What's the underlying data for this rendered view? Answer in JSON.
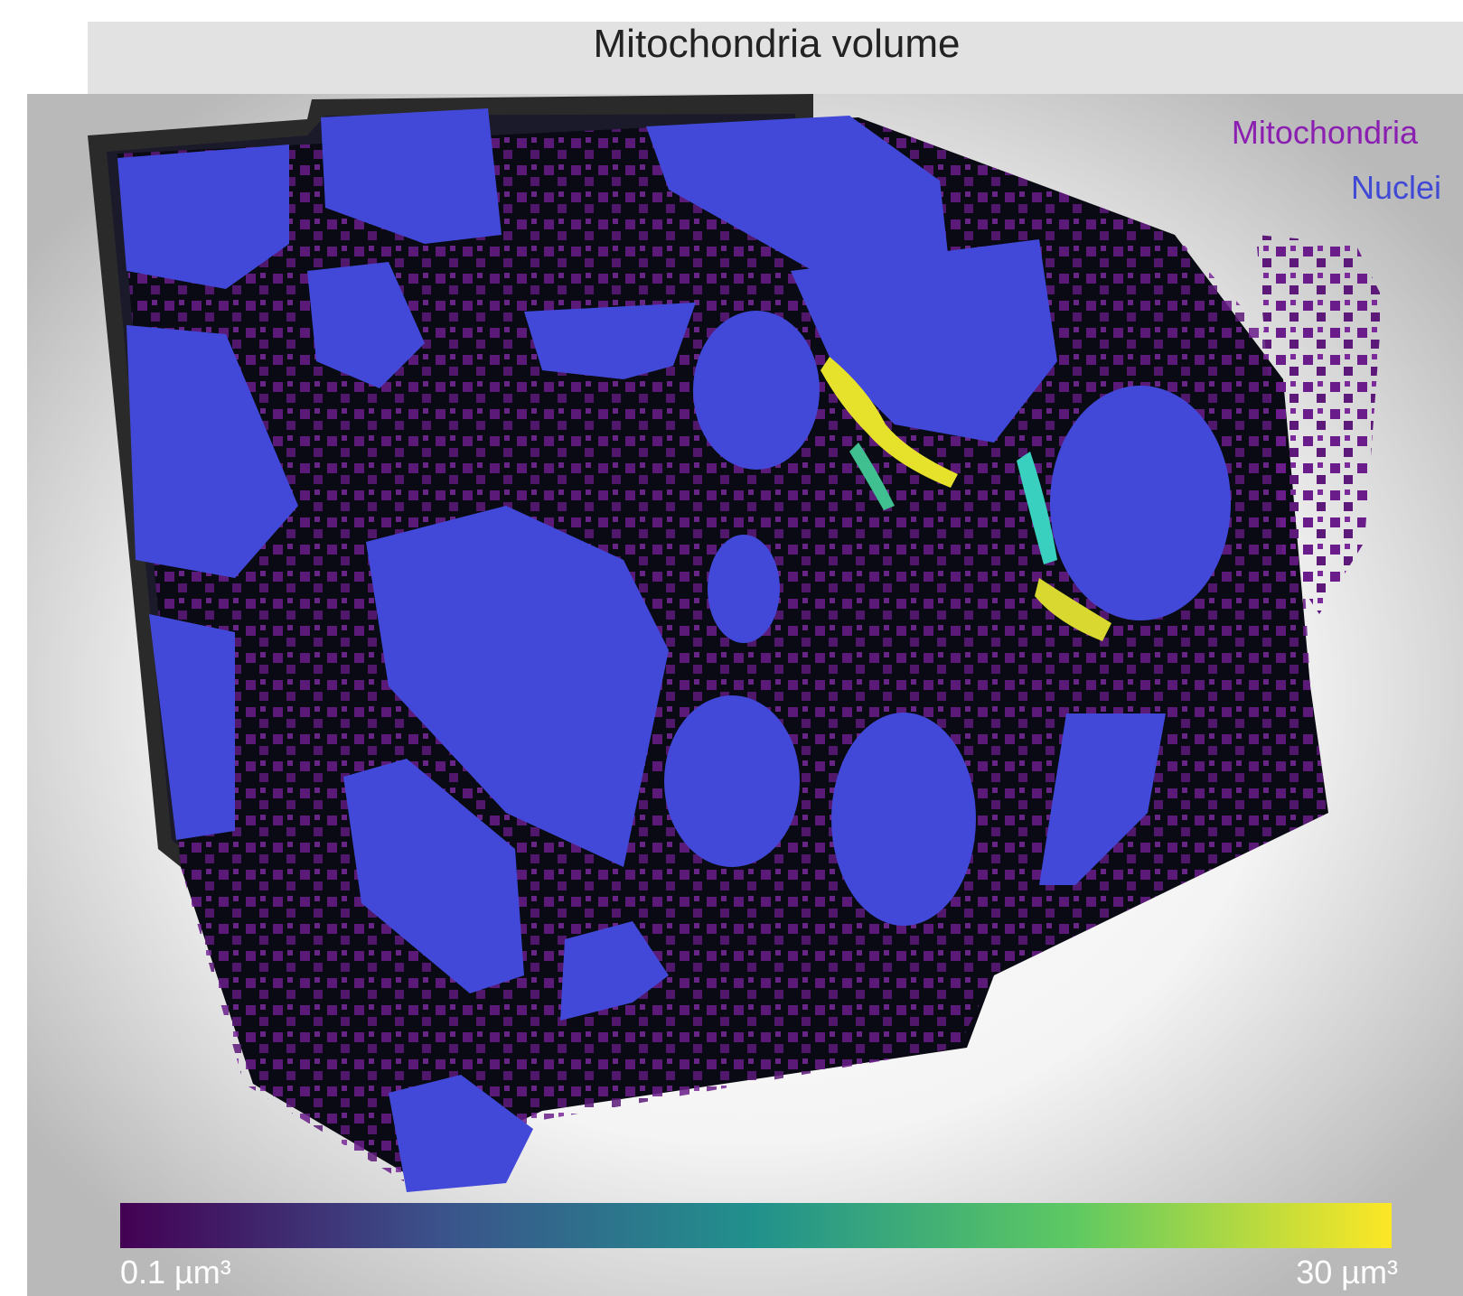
{
  "figure": {
    "title": "Mitochondria volume",
    "legend": [
      {
        "label": "Mitochondria",
        "color": "#8a1fb0"
      },
      {
        "label": "Nuclei",
        "color": "#3f49d6"
      }
    ],
    "colorbar": {
      "min_label": "0.1 µm³",
      "max_label": "30 µm³",
      "colormap": "viridis",
      "stops": [
        "#440154",
        "#3b528b",
        "#21918c",
        "#5ec962",
        "#fde725"
      ]
    },
    "colors": {
      "nucleus": "#4249d8",
      "mitochondria": "#5a1a7a",
      "large_mito_yellow": "#e6e12a",
      "mid_mito_teal": "#3ad0c0"
    }
  }
}
